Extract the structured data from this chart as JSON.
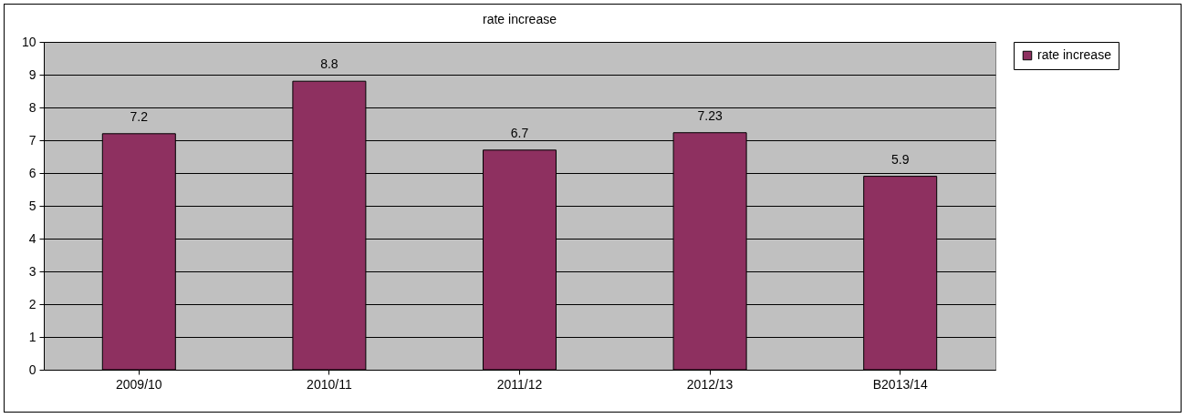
{
  "chart_data": {
    "type": "bar",
    "title": "rate increase",
    "categories": [
      "2009/10",
      "2010/11",
      "2011/12",
      "2012/13",
      "B2013/14"
    ],
    "series": [
      {
        "name": "rate increase",
        "color": "#8e3060",
        "values": [
          7.2,
          8.8,
          6.7,
          7.23,
          5.9
        ]
      }
    ],
    "ylim": [
      0,
      10
    ],
    "yticks": [
      0,
      1,
      2,
      3,
      4,
      5,
      6,
      7,
      8,
      9,
      10
    ],
    "grid": "y",
    "legend": "right",
    "data_labels": true
  }
}
